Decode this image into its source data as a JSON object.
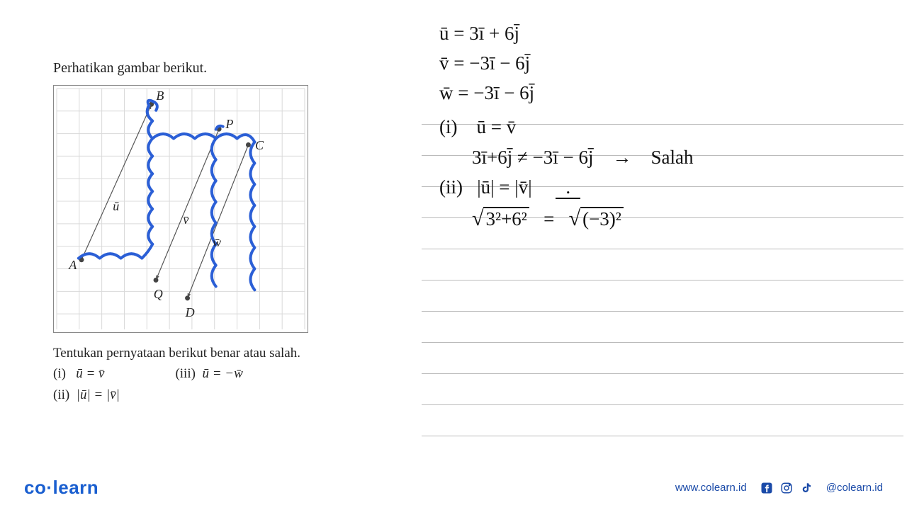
{
  "left": {
    "instruction": "Perhatikan gambar berikut.",
    "diagram": {
      "grid": {
        "cols": 11,
        "rows": 11,
        "cell": 32,
        "stroke": "#d9d9d9"
      },
      "points": {
        "A": {
          "x": 1.1,
          "y": 7.6,
          "label": "A"
        },
        "B": {
          "x": 4.2,
          "y": 0.7,
          "label": "B"
        },
        "P": {
          "x": 7.2,
          "y": 1.8,
          "label": "P"
        },
        "Q": {
          "x": 4.4,
          "y": 8.5,
          "label": "Q"
        },
        "C": {
          "x": 8.5,
          "y": 2.5,
          "label": "C"
        },
        "D": {
          "x": 5.8,
          "y": 9.3,
          "label": "D"
        }
      },
      "vectors": [
        {
          "from": "A",
          "to": "B",
          "label": "ū",
          "lx": 2.6,
          "ly": 5.0
        },
        {
          "from": "P",
          "to": "Q",
          "label": "v̄",
          "lx": 5.7,
          "ly": 5.6
        },
        {
          "from": "C",
          "to": "D",
          "label": "w̄",
          "lx": 7.0,
          "ly": 6.6
        }
      ],
      "highlight": {
        "stroke": "#2b5fd6",
        "strokeWidth": 4,
        "paths": [
          "M 35 245 Q 50 232 65 245 Q 80 232 95 245 Q 110 232 125 245 Q 135 235 140 225",
          "M 140 225 Q 128 213 140 200 Q 128 188 140 175 Q 128 163 140 150 Q 128 138 140 125 Q 128 113 140 100 Q 128 88 140 75 Q 128 63 140 50 Q 128 40 135 28",
          "M 135 28 Q 130 18 140 22 Q 150 26 145 35",
          "M 140 75 Q 155 62 170 75 Q 185 62 200 75 Q 215 62 230 75",
          "M 230 75 Q 218 90 230 105 Q 218 120 230 135 Q 218 150 230 165 Q 218 180 230 195 Q 218 210 230 225 Q 218 240 230 255 Q 218 270 230 285",
          "M 230 62 Q 233 55 240 58",
          "M 230 75 Q 245 62 260 75 Q 275 62 285 80",
          "M 285 80 Q 273 95 285 110 Q 273 125 285 140 Q 273 155 285 170 Q 273 185 285 200 Q 273 215 285 230 Q 273 245 285 260 Q 273 275 285 290"
        ]
      }
    },
    "question": {
      "prompt": "Tentukan pernyataan berikut benar atau salah.",
      "statements": [
        {
          "num": "(i)",
          "text": "ū = v̄"
        },
        {
          "num": "(ii)",
          "text": "|ū| = |v̄|"
        },
        {
          "num": "(iii)",
          "text": "ū = −w̄"
        }
      ]
    }
  },
  "handwriting": {
    "eq1": "ū  =  3ī + 6j̄",
    "eq2": "v̄  =  −3ī − 6j̄",
    "eq3": "w̄  =  −3ī − 6j̄",
    "l1a": "(i)",
    "l1b": "ū  =  v̄",
    "l2a": "3ī+6j̄   ≠   −3ī − 6j̄",
    "l2arrow": "→",
    "l2res": "Salah",
    "l3a": "(ii)",
    "l3b": "|ū|  =  |v̄|",
    "l4lhs_inner": "3²+6²",
    "l4eq": "=",
    "l4rhs_inner": "(−3)²",
    "dot": "."
  },
  "footer": {
    "logo_a": "co",
    "logo_b": "learn",
    "url": "www.colearn.id",
    "handle": "@colearn.id"
  },
  "colors": {
    "highlight": "#2b5fd6",
    "ink": "#111111",
    "grid": "#d9d9d9",
    "rule": "#bbbbbb",
    "brand": "#1a5fd0"
  }
}
